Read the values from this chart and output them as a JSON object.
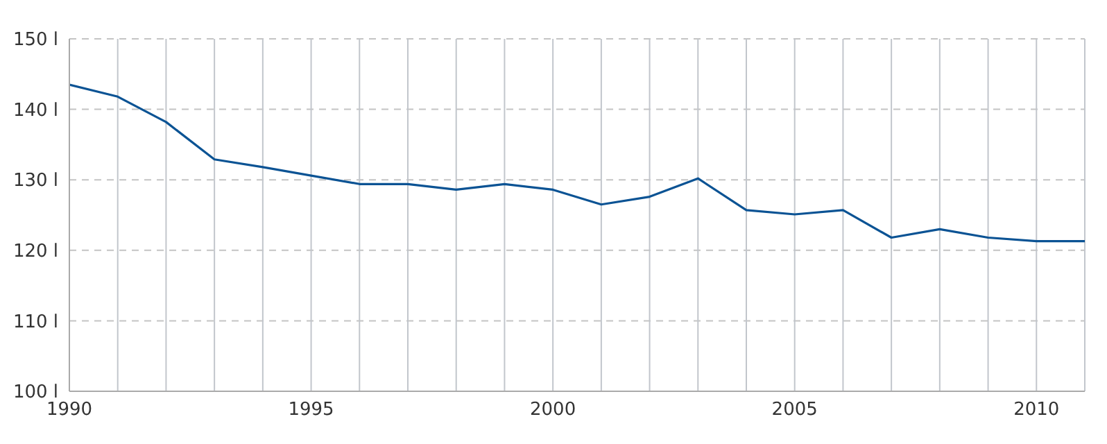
{
  "chart_data": {
    "type": "line",
    "x": [
      1990,
      1991,
      1992,
      1993,
      1994,
      1995,
      1996,
      1997,
      1998,
      1999,
      2000,
      2001,
      2002,
      2003,
      2004,
      2005,
      2006,
      2007,
      2008,
      2009,
      2010,
      2011
    ],
    "series": [
      {
        "color": "#0b5394",
        "values": [
          143.5,
          141.8,
          138.2,
          132.9,
          131.8,
          130.6,
          129.4,
          129.4,
          128.6,
          129.4,
          128.6,
          126.5,
          127.6,
          130.2,
          125.7,
          125.1,
          125.7,
          121.8,
          123,
          121.8,
          121.3,
          121.3
        ]
      }
    ],
    "xlim": [
      1990,
      2011
    ],
    "xticks": [
      1990,
      {
        "value": 1991,
        "label": null
      },
      {
        "value": 1992,
        "label": null
      },
      {
        "value": 1993,
        "label": null
      },
      {
        "value": 1994,
        "label": null
      },
      1995,
      {
        "value": 1996,
        "label": null
      },
      {
        "value": 1997,
        "label": null
      },
      {
        "value": 1998,
        "label": null
      },
      {
        "value": 1999,
        "label": null
      },
      2000,
      {
        "value": 2001,
        "label": null
      },
      {
        "value": 2002,
        "label": null
      },
      {
        "value": 2003,
        "label": null
      },
      {
        "value": 2004,
        "label": null
      },
      2005,
      {
        "value": 2006,
        "label": null
      },
      {
        "value": 2007,
        "label": null
      },
      {
        "value": 2008,
        "label": null
      },
      {
        "value": 2009,
        "label": null
      },
      2010,
      {
        "value": 2011,
        "label": null
      }
    ],
    "ylim": [
      100,
      150
    ],
    "yticks": [
      {
        "value": 100,
        "label": "100 l"
      },
      {
        "value": 110,
        "label": "110 l"
      },
      {
        "value": 120,
        "label": "120 l"
      },
      {
        "value": 130,
        "label": "130 l"
      },
      {
        "value": 140,
        "label": "140 l"
      },
      {
        "value": 150,
        "label": "150 l"
      }
    ],
    "grid": true,
    "line_style": "solid"
  }
}
